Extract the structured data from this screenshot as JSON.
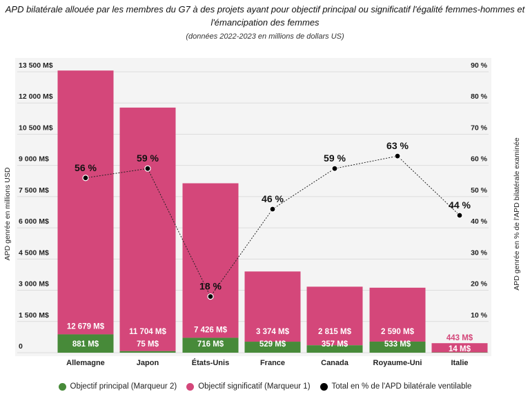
{
  "chart_data": {
    "type": "bar",
    "title": "APD bilatérale allouée par les membres du G7 à des projets ayant pour objectif principal ou significatif l'égalité femmes-hommes et l'émancipation des femmes",
    "subtitle": "(données 2022-2023 en millions de dollars US)",
    "ylabel": "APD genrée en millions USD",
    "y2label": "APD genrée en % de l'APD bilatérale examinée",
    "ylim": [
      0,
      13500
    ],
    "y2lim": [
      0,
      90
    ],
    "yticks": [
      "0",
      "1 500 M$",
      "3 000 M$",
      "4 500 M$",
      "6 000 M$",
      "7 500 M$",
      "9 000 M$",
      "10 500 M$",
      "12 000 M$",
      "13 500 M$"
    ],
    "y2ticks": [
      "0",
      "10 %",
      "20 %",
      "30 %",
      "40 %",
      "50 %",
      "60 %",
      "70 %",
      "80 %",
      "90 %"
    ],
    "categories": [
      "Allemagne",
      "Japon",
      "États-Unis",
      "France",
      "Canada",
      "Royaume-Uni",
      "Italie"
    ],
    "series": [
      {
        "name": "Objectif principal (Marqueur 2)",
        "color": "#478a39",
        "values": [
          881,
          75,
          716,
          529,
          357,
          533,
          14
        ],
        "labels": [
          "881 M$",
          "75 M$",
          "716 M$",
          "529 M$",
          "357 M$",
          "533 M$",
          "14 M$"
        ]
      },
      {
        "name": "Objectif significatif (Marqueur 1)",
        "color": "#d4477a",
        "values": [
          12679,
          11704,
          7426,
          3374,
          2815,
          2590,
          443
        ],
        "labels": [
          "12 679 M$",
          "11 704 M$",
          "7 426 M$",
          "3 374 M$",
          "2 815 M$",
          "2 590 M$",
          "443 M$"
        ]
      },
      {
        "name": "Total en % de l'APD bilatérale ventilable",
        "color": "#000000",
        "type": "line",
        "values": [
          56,
          59,
          18,
          46,
          59,
          63,
          44
        ],
        "labels": [
          "56 %",
          "59 %",
          "18 %",
          "46 %",
          "59 %",
          "63 %",
          "44 %"
        ]
      }
    ],
    "grid": true,
    "legend": "bottom"
  }
}
